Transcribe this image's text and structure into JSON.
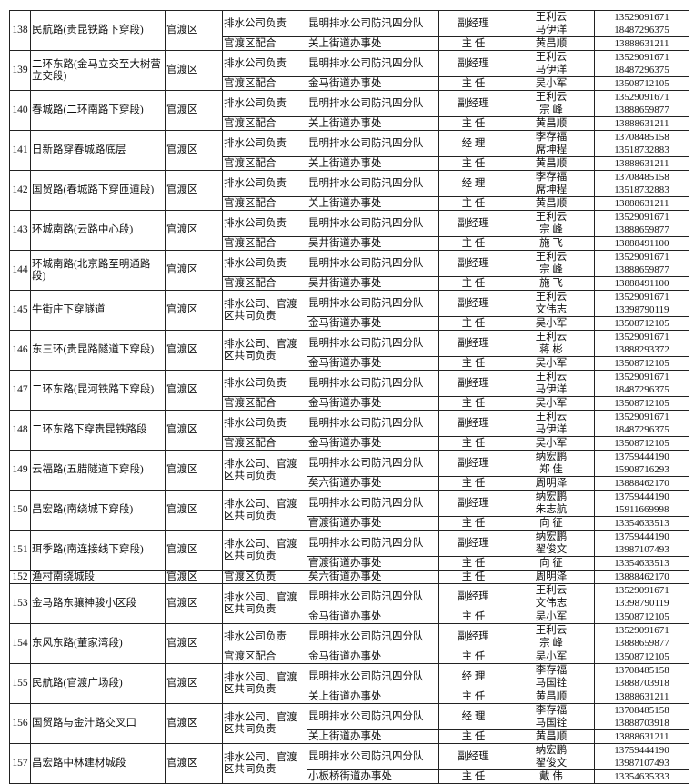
{
  "table": {
    "records": [
      {
        "no": "138",
        "name": "民航路(贵昆铁路下穿段)",
        "district": "官渡区",
        "resp1": "排水公司负责",
        "unit1": "昆明排水公司防汛四分队",
        "title1": "副经理",
        "persons1": [
          "王利云",
          "马伊洋"
        ],
        "phones1": [
          "13529091671",
          "18487296375"
        ],
        "resp2": "官渡区配合",
        "unit2": "关上街道办事处",
        "title2": "主 任",
        "persons2": [
          "黄昌顺"
        ],
        "phones2": [
          "13888631211"
        ]
      },
      {
        "no": "139",
        "name": "二环东路(金马立交至大树营立交段)",
        "district": "官渡区",
        "resp1": "排水公司负责",
        "unit1": "昆明排水公司防汛四分队",
        "title1": "副经理",
        "persons1": [
          "王利云",
          "马伊洋"
        ],
        "phones1": [
          "13529091671",
          "18487296375"
        ],
        "resp2": "官渡区配合",
        "unit2": "金马街道办事处",
        "title2": "主 任",
        "persons2": [
          "吴小军"
        ],
        "phones2": [
          "13508712105"
        ]
      },
      {
        "no": "140",
        "name": "春城路(二环南路下穿段)",
        "district": "官渡区",
        "resp1": "排水公司负责",
        "unit1": "昆明排水公司防汛四分队",
        "title1": "副经理",
        "persons1": [
          "王利云",
          "宗 峰"
        ],
        "phones1": [
          "13529091671",
          "13888659877"
        ],
        "resp2": "官渡区配合",
        "unit2": "关上街道办事处",
        "title2": "主 任",
        "persons2": [
          "黄昌顺"
        ],
        "phones2": [
          "13888631211"
        ]
      },
      {
        "no": "141",
        "name": "日新路穿春城路底层",
        "district": "官渡区",
        "resp1": "排水公司负责",
        "unit1": "昆明排水公司防汛四分队",
        "title1": "经 理",
        "persons1": [
          "李存福",
          "席坤程"
        ],
        "phones1": [
          "13708485158",
          "13518732883"
        ],
        "resp2": "官渡区配合",
        "unit2": "关上街道办事处",
        "title2": "主 任",
        "persons2": [
          "黄昌顺"
        ],
        "phones2": [
          "13888631211"
        ]
      },
      {
        "no": "142",
        "name": "国贸路(春城路下穿匝道段)",
        "district": "官渡区",
        "resp1": "排水公司负责",
        "unit1": "昆明排水公司防汛四分队",
        "title1": "经 理",
        "persons1": [
          "李存福",
          "席坤程"
        ],
        "phones1": [
          "13708485158",
          "13518732883"
        ],
        "resp2": "官渡区配合",
        "unit2": "关上街道办事处",
        "title2": "主 任",
        "persons2": [
          "黄昌顺"
        ],
        "phones2": [
          "13888631211"
        ]
      },
      {
        "no": "143",
        "name": "环城南路(云路中心段)",
        "district": "官渡区",
        "resp1": "排水公司负责",
        "unit1": "昆明排水公司防汛四分队",
        "title1": "副经理",
        "persons1": [
          "王利云",
          "宗 峰"
        ],
        "phones1": [
          "13529091671",
          "13888659877"
        ],
        "resp2": "官渡区配合",
        "unit2": "吴井街道办事处",
        "title2": "主 任",
        "persons2": [
          "施 飞"
        ],
        "phones2": [
          "13888491100"
        ]
      },
      {
        "no": "144",
        "name": "环城南路(北京路至明通路段)",
        "district": "官渡区",
        "resp1": "排水公司负责",
        "unit1": "昆明排水公司防汛四分队",
        "title1": "副经理",
        "persons1": [
          "王利云",
          "宗 峰"
        ],
        "phones1": [
          "13529091671",
          "13888659877"
        ],
        "resp2": "官渡区配合",
        "unit2": "吴井街道办事处",
        "title2": "主 任",
        "persons2": [
          "施 飞"
        ],
        "phones2": [
          "13888491100"
        ]
      },
      {
        "no": "145",
        "name": "牛街庄下穿隧道",
        "district": "官渡区",
        "resp1": "排水公司、官渡区共同负责",
        "unit1": "昆明排水公司防汛四分队",
        "title1": "副经理",
        "persons1": [
          "王利云",
          "文伟志"
        ],
        "phones1": [
          "13529091671",
          "13398790119"
        ],
        "unit2": "金马街道办事处",
        "title2": "主 任",
        "persons2": [
          "吴小军"
        ],
        "phones2": [
          "13508712105"
        ]
      },
      {
        "no": "146",
        "name": "东三环(贵昆路隧道下穿段)",
        "district": "官渡区",
        "resp1": "排水公司、官渡区共同负责",
        "unit1": "昆明排水公司防汛四分队",
        "title1": "副经理",
        "persons1": [
          "王利云",
          "蒋 彬"
        ],
        "phones1": [
          "13529091671",
          "13888293372"
        ],
        "unit2": "金马街道办事处",
        "title2": "主 任",
        "persons2": [
          "吴小军"
        ],
        "phones2": [
          "13508712105"
        ]
      },
      {
        "no": "147",
        "name": "二环东路(昆河铁路下穿段)",
        "district": "官渡区",
        "resp1": "排水公司负责",
        "unit1": "昆明排水公司防汛四分队",
        "title1": "副经理",
        "persons1": [
          "王利云",
          "马伊洋"
        ],
        "phones1": [
          "13529091671",
          "18487296375"
        ],
        "resp2": "官渡区配合",
        "unit2": "金马街道办事处",
        "title2": "主 任",
        "persons2": [
          "吴小军"
        ],
        "phones2": [
          "13508712105"
        ]
      },
      {
        "no": "148",
        "name": "二环东路下穿贵昆铁路段",
        "district": "官渡区",
        "resp1": "排水公司负责",
        "unit1": "昆明排水公司防汛四分队",
        "title1": "副经理",
        "persons1": [
          "王利云",
          "马伊洋"
        ],
        "phones1": [
          "13529091671",
          "18487296375"
        ],
        "resp2": "官渡区配合",
        "unit2": "金马街道办事处",
        "title2": "主 任",
        "persons2": [
          "吴小军"
        ],
        "phones2": [
          "13508712105"
        ]
      },
      {
        "no": "149",
        "name": "云福路(五腊隧道下穿段)",
        "district": "官渡区",
        "resp1": "排水公司、官渡区共同负责",
        "unit1": "昆明排水公司防汛四分队",
        "title1": "副经理",
        "persons1": [
          "纳宏鹏",
          "郑 佳"
        ],
        "phones1": [
          "13759444190",
          "15908716293"
        ],
        "unit2": "矣六街道办事处",
        "title2": "主 任",
        "persons2": [
          "周明泽"
        ],
        "phones2": [
          "13888462170"
        ]
      },
      {
        "no": "150",
        "name": "昌宏路(南绕城下穿段)",
        "district": "官渡区",
        "resp1": "排水公司、官渡区共同负责",
        "unit1": "昆明排水公司防汛四分队",
        "title1": "副经理",
        "persons1": [
          "纳宏鹏",
          "朱志航"
        ],
        "phones1": [
          "13759444190",
          "15911669998"
        ],
        "unit2": "官渡街道办事处",
        "title2": "主 任",
        "persons2": [
          "向 征"
        ],
        "phones2": [
          "13354633513"
        ]
      },
      {
        "no": "151",
        "name": "珥季路(南连接线下穿段)",
        "district": "官渡区",
        "resp1": "排水公司、官渡区共同负责",
        "unit1": "昆明排水公司防汛四分队",
        "title1": "副经理",
        "persons1": [
          "纳宏鹏",
          "翟俊文"
        ],
        "phones1": [
          "13759444190",
          "13987107493"
        ],
        "unit2": "官渡街道办事处",
        "title2": "主 任",
        "persons2": [
          "向 征"
        ],
        "phones2": [
          "13354633513"
        ]
      },
      {
        "no": "152",
        "name": "渔村南绕城段",
        "district": "官渡区",
        "resp1": "官渡区负责",
        "unit1": "矣六街道办事处",
        "title1": "主 任",
        "persons1": [
          "周明泽"
        ],
        "phones1": [
          "13888462170"
        ],
        "single": true
      },
      {
        "no": "153",
        "name": "金马路东骧神骏小区段",
        "district": "官渡区",
        "resp1": "排水公司、官渡区共同负责",
        "unit1": "昆明排水公司防汛四分队",
        "title1": "副经理",
        "persons1": [
          "王利云",
          "文伟志"
        ],
        "phones1": [
          "13529091671",
          "13398790119"
        ],
        "unit2": "金马街道办事处",
        "title2": "主 任",
        "persons2": [
          "吴小军"
        ],
        "phones2": [
          "13508712105"
        ]
      },
      {
        "no": "154",
        "name": "东风东路(董家湾段)",
        "district": "官渡区",
        "resp1": "排水公司负责",
        "unit1": "昆明排水公司防汛四分队",
        "title1": "副经理",
        "persons1": [
          "王利云",
          "宗 峰"
        ],
        "phones1": [
          "13529091671",
          "13888659877"
        ],
        "resp2": "官渡区配合",
        "unit2": "金马街道办事处",
        "title2": "主 任",
        "persons2": [
          "吴小军"
        ],
        "phones2": [
          "13508712105"
        ]
      },
      {
        "no": "155",
        "name": "民航路(官渡广场段)",
        "district": "官渡区",
        "resp1": "排水公司、官渡区共同负责",
        "unit1": "昆明排水公司防汛四分队",
        "title1": "经 理",
        "persons1": [
          "李存福",
          "马国铨"
        ],
        "phones1": [
          "13708485158",
          "13888703918"
        ],
        "unit2": "关上街道办事处",
        "title2": "主 任",
        "persons2": [
          "黄昌顺"
        ],
        "phones2": [
          "13888631211"
        ]
      },
      {
        "no": "156",
        "name": "国贸路与金汁路交叉口",
        "district": "官渡区",
        "resp1": "排水公司、官渡区共同负责",
        "unit1": "昆明排水公司防汛四分队",
        "title1": "经 理",
        "persons1": [
          "李存福",
          "马国铨"
        ],
        "phones1": [
          "13708485158",
          "13888703918"
        ],
        "unit2": "关上街道办事处",
        "title2": "主 任",
        "persons2": [
          "黄昌顺"
        ],
        "phones2": [
          "13888631211"
        ]
      },
      {
        "no": "157",
        "name": "昌宏路中林建材城段",
        "district": "官渡区",
        "resp1": "排水公司、官渡区共同负责",
        "unit1": "昆明排水公司防汛四分队",
        "title1": "副经理",
        "persons1": [
          "纳宏鹏",
          "翟俊文"
        ],
        "phones1": [
          "13759444190",
          "13987107493"
        ],
        "unit2": "小板桥街道办事处",
        "title2": "主 任",
        "persons2": [
          "戴 伟"
        ],
        "phones2": [
          "13354635333"
        ]
      }
    ]
  }
}
